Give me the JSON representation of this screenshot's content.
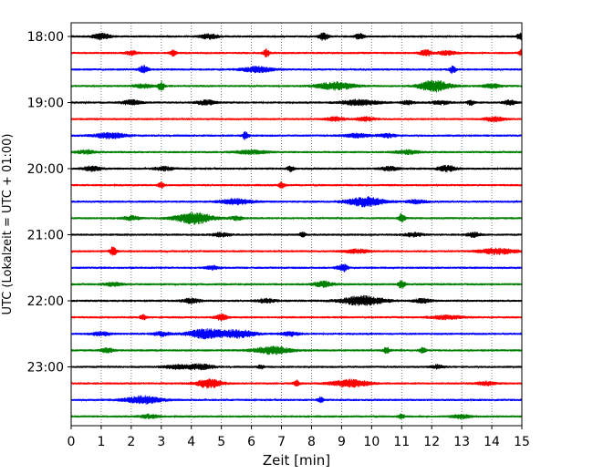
{
  "chart_data": {
    "type": "line",
    "title": "",
    "xlabel": "Zeit  [min]",
    "ylabel": "UTC (Lokalzeit = UTC + 01:00)",
    "xlim": [
      0,
      15
    ],
    "x_ticks": [
      "0",
      "1",
      "2",
      "3",
      "4",
      "5",
      "6",
      "7",
      "8",
      "9",
      "10",
      "11",
      "12",
      "13",
      "14",
      "15"
    ],
    "y_ticks": [
      {
        "label": "18:00",
        "trace": 0
      },
      {
        "label": "19:00",
        "trace": 4
      },
      {
        "label": "20:00",
        "trace": 8
      },
      {
        "label": "21:00",
        "trace": 12
      },
      {
        "label": "22:00",
        "trace": 16
      },
      {
        "label": "23:00",
        "trace": 20
      }
    ],
    "grid": "vertical dotted at each minute",
    "trace_interval_min": 15,
    "colors": [
      "#000000",
      "#ff0000",
      "#0000ff",
      "#008000"
    ],
    "traces": [
      {
        "start": "18:00",
        "color": "#000000",
        "events": [
          [
            1.0,
            3,
            0.3
          ],
          [
            4.6,
            2.5,
            0.3
          ],
          [
            8.4,
            4,
            0.15
          ],
          [
            9.6,
            3,
            0.15
          ],
          [
            14.95,
            4,
            0.1
          ]
        ]
      },
      {
        "start": "18:15",
        "color": "#ff0000",
        "events": [
          [
            2.0,
            2,
            0.2
          ],
          [
            3.4,
            3,
            0.1
          ],
          [
            6.5,
            4,
            0.1
          ],
          [
            11.8,
            3,
            0.2
          ],
          [
            12.5,
            2,
            0.3
          ],
          [
            15.0,
            4,
            0.1
          ]
        ]
      },
      {
        "start": "18:30",
        "color": "#0000ff",
        "events": [
          [
            2.4,
            4,
            0.15
          ],
          [
            6.2,
            3,
            0.5
          ],
          [
            12.7,
            4,
            0.1
          ]
        ]
      },
      {
        "start": "18:45",
        "color": "#008000",
        "events": [
          [
            2.4,
            2,
            0.3
          ],
          [
            3.0,
            5,
            0.1
          ],
          [
            8.8,
            4,
            0.6
          ],
          [
            12.1,
            6,
            0.5
          ],
          [
            14.0,
            2,
            0.3
          ]
        ]
      },
      {
        "start": "19:00",
        "color": "#000000",
        "events": [
          [
            2.0,
            2.5,
            0.3
          ],
          [
            4.5,
            2.5,
            0.3
          ],
          [
            9.6,
            3,
            0.6
          ],
          [
            11.2,
            2,
            0.2
          ],
          [
            12.3,
            2,
            0.3
          ],
          [
            13.3,
            3,
            0.1
          ],
          [
            14.6,
            2.5,
            0.2
          ]
        ]
      },
      {
        "start": "19:15",
        "color": "#ff0000",
        "events": [
          [
            8.8,
            2,
            0.3
          ],
          [
            9.8,
            2,
            0.3
          ],
          [
            14.1,
            2.5,
            0.3
          ]
        ]
      },
      {
        "start": "19:30",
        "color": "#0000ff",
        "events": [
          [
            1.3,
            3,
            0.5
          ],
          [
            5.8,
            4,
            0.1
          ],
          [
            9.5,
            2,
            0.4
          ],
          [
            10.5,
            2,
            0.3
          ]
        ]
      },
      {
        "start": "19:45",
        "color": "#008000",
        "events": [
          [
            0.5,
            2,
            0.3
          ],
          [
            6.0,
            2,
            0.5
          ],
          [
            11.2,
            2,
            0.4
          ]
        ]
      },
      {
        "start": "20:00",
        "color": "#000000",
        "events": [
          [
            0.7,
            2.5,
            0.3
          ],
          [
            3.1,
            2,
            0.3
          ],
          [
            7.3,
            3,
            0.1
          ],
          [
            10.6,
            2,
            0.3
          ],
          [
            12.5,
            3,
            0.3
          ]
        ]
      },
      {
        "start": "20:15",
        "color": "#ff0000",
        "events": [
          [
            3.0,
            3,
            0.1
          ],
          [
            7.0,
            3,
            0.1
          ]
        ]
      },
      {
        "start": "20:30",
        "color": "#0000ff",
        "events": [
          [
            5.5,
            3,
            0.5
          ],
          [
            9.8,
            5,
            0.6
          ],
          [
            11.5,
            2,
            0.3
          ]
        ]
      },
      {
        "start": "20:45",
        "color": "#008000",
        "events": [
          [
            2.0,
            2,
            0.3
          ],
          [
            4.1,
            6,
            0.6
          ],
          [
            5.5,
            2,
            0.2
          ],
          [
            11.0,
            5,
            0.1
          ]
        ]
      },
      {
        "start": "21:00",
        "color": "#000000",
        "events": [
          [
            5.0,
            2,
            0.3
          ],
          [
            7.7,
            2.5,
            0.1
          ],
          [
            11.4,
            2,
            0.3
          ],
          [
            13.4,
            2.5,
            0.2
          ]
        ]
      },
      {
        "start": "21:15",
        "color": "#ff0000",
        "events": [
          [
            1.4,
            5,
            0.1
          ],
          [
            9.5,
            2,
            0.4
          ],
          [
            14.2,
            3,
            0.6
          ]
        ]
      },
      {
        "start": "21:30",
        "color": "#0000ff",
        "events": [
          [
            4.7,
            2,
            0.2
          ],
          [
            9.0,
            2,
            0.2
          ],
          [
            9.1,
            2.5,
            0.1
          ]
        ]
      },
      {
        "start": "21:45",
        "color": "#008000",
        "events": [
          [
            1.4,
            2,
            0.3
          ],
          [
            8.4,
            3,
            0.3
          ],
          [
            11.0,
            5,
            0.1
          ]
        ]
      },
      {
        "start": "22:00",
        "color": "#000000",
        "events": [
          [
            4.0,
            2.5,
            0.3
          ],
          [
            6.5,
            2,
            0.3
          ],
          [
            9.7,
            5,
            0.7
          ],
          [
            11.7,
            2,
            0.3
          ]
        ]
      },
      {
        "start": "22:15",
        "color": "#ff0000",
        "events": [
          [
            2.4,
            2.5,
            0.1
          ],
          [
            5.0,
            3,
            0.2
          ],
          [
            12.5,
            2,
            0.5
          ]
        ]
      },
      {
        "start": "22:30",
        "color": "#0000ff",
        "events": [
          [
            1.0,
            2,
            0.3
          ],
          [
            3.0,
            2,
            0.3
          ],
          [
            4.5,
            5,
            0.6
          ],
          [
            5.6,
            4,
            0.5
          ],
          [
            7.3,
            2,
            0.3
          ]
        ]
      },
      {
        "start": "22:45",
        "color": "#008000",
        "events": [
          [
            1.2,
            2.5,
            0.2
          ],
          [
            6.7,
            4,
            0.6
          ],
          [
            10.5,
            3,
            0.1
          ],
          [
            11.7,
            3,
            0.1
          ]
        ]
      },
      {
        "start": "23:00",
        "color": "#000000",
        "events": [
          [
            3.5,
            2,
            0.4
          ],
          [
            4.3,
            3,
            0.4
          ],
          [
            6.3,
            2,
            0.1
          ],
          [
            12.2,
            2,
            0.2
          ]
        ]
      },
      {
        "start": "23:15",
        "color": "#ff0000",
        "events": [
          [
            4.6,
            5,
            0.4
          ],
          [
            7.5,
            3,
            0.1
          ],
          [
            9.3,
            4,
            0.6
          ],
          [
            13.8,
            2,
            0.3
          ]
        ]
      },
      {
        "start": "23:30",
        "color": "#0000ff",
        "events": [
          [
            2.4,
            4,
            0.6
          ],
          [
            8.3,
            3,
            0.1
          ]
        ]
      },
      {
        "start": "23:45",
        "color": "#008000",
        "events": [
          [
            2.6,
            2,
            0.3
          ],
          [
            11.0,
            2.5,
            0.1
          ],
          [
            13.0,
            2,
            0.3
          ]
        ]
      }
    ]
  }
}
